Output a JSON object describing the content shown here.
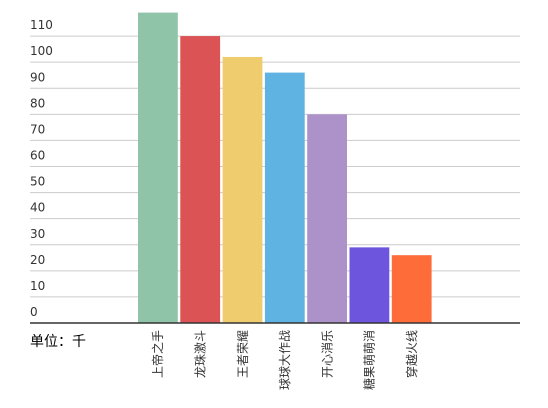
{
  "chart_data": {
    "type": "bar",
    "categories": [
      "上帝之手",
      "龙珠激斗",
      "王者荣耀",
      "球球大作战",
      "开心消乐",
      "糖果萌萌消",
      "穿越火线"
    ],
    "values": [
      119,
      110,
      102,
      96,
      80,
      29,
      26
    ],
    "colors": [
      "#8fc4a9",
      "#dc5356",
      "#efcd6e",
      "#5fb3e3",
      "#ad91c9",
      "#6e55dd",
      "#fe6c3a"
    ],
    "ylim": [
      0,
      120
    ],
    "yticks": [
      0,
      10,
      20,
      30,
      40,
      50,
      60,
      70,
      80,
      90,
      100,
      110
    ],
    "grid": true,
    "unit_label": "单位：千"
  }
}
